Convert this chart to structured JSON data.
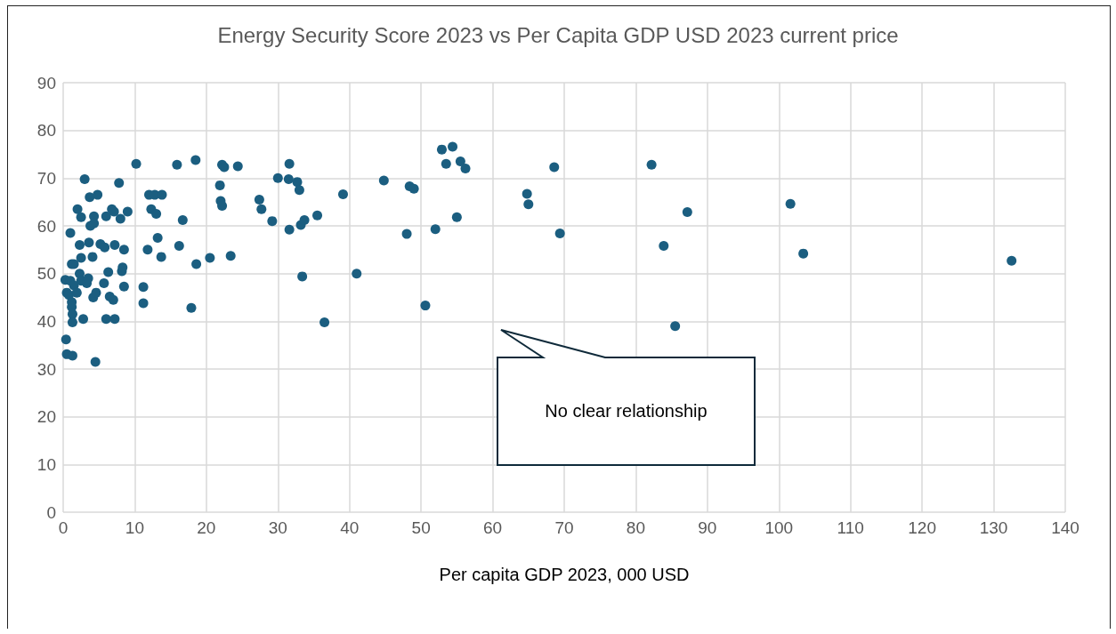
{
  "chart_data": {
    "type": "scatter",
    "title": "Energy Security Score 2023 vs Per Capita GDP USD 2023 current price",
    "xlabel": "Per capita GDP 2023, 000 USD",
    "annotations": [
      "No clear relationship"
    ],
    "x": [
      0.3,
      0.5,
      0.4,
      0.5,
      1.3,
      0.8,
      1,
      1.2,
      1.5,
      1,
      1.5,
      1.2,
      1.2,
      1.3,
      1.3,
      1.9,
      2,
      2.3,
      2.5,
      2.5,
      2.3,
      2.5,
      2.8,
      3,
      3.3,
      3.6,
      3.7,
      3.8,
      3.5,
      4.1,
      4.2,
      4.3,
      4.3,
      4.5,
      4.6,
      4.8,
      5.2,
      5.7,
      5.8,
      6,
      6,
      6.3,
      6.5,
      6.8,
      7,
      7.1,
      7.2,
      7.2,
      7.8,
      8,
      8.2,
      8.3,
      8.5,
      8.5,
      9,
      10.2,
      11.2,
      11.2,
      11.8,
      12,
      12.3,
      12.8,
      13,
      13.2,
      13.8,
      13.7,
      15.9,
      16.2,
      16.7,
      17.9,
      18.5,
      18.6,
      20.5,
      21.9,
      22,
      22.2,
      22.2,
      22.5,
      23.4,
      24.4,
      27.4,
      27.7,
      29.2,
      30,
      31.6,
      31.5,
      31.6,
      32.7,
      33,
      33.2,
      33.4,
      33.7,
      35.5,
      36.5,
      39.1,
      41,
      44.8,
      48,
      48.4,
      49,
      50.6,
      52,
      52.9,
      53.5,
      54.4,
      55,
      55.5,
      56.2,
      64.8,
      65,
      68.6,
      69.4,
      82.2,
      83.9,
      85.5,
      87.2,
      101.6,
      103.4,
      132.5
    ],
    "values": [
      48.7,
      46,
      36.2,
      33.1,
      32.8,
      45.5,
      58.5,
      52,
      52,
      48.5,
      47.5,
      44,
      43,
      41.5,
      39.8,
      46,
      63.5,
      56,
      61.8,
      53.3,
      50,
      48.5,
      40.5,
      69.8,
      48,
      56.5,
      66,
      60,
      49,
      53.5,
      45,
      62,
      60.5,
      31.5,
      46,
      66.5,
      56.2,
      48,
      55.5,
      62,
      40.5,
      50.3,
      45.2,
      63.5,
      44.5,
      63,
      40.5,
      56,
      69,
      61.5,
      50.5,
      51.3,
      47.3,
      55,
      63,
      73,
      47.2,
      43.8,
      55,
      66.5,
      63.5,
      66.5,
      62.5,
      57.5,
      66.5,
      53.5,
      72.8,
      55.8,
      61.2,
      42.8,
      73.8,
      52,
      53.3,
      68.5,
      65.2,
      64.2,
      72.8,
      72.3,
      53.7,
      72.5,
      65.5,
      63.5,
      61,
      70,
      73,
      69.8,
      59.2,
      69.2,
      67.5,
      60.2,
      49.4,
      61.2,
      62.2,
      39.8,
      66.6,
      50,
      69.5,
      58.3,
      68.3,
      67.8,
      43.3,
      59.3,
      76,
      73,
      76.6,
      61.8,
      73.5,
      72,
      66.7,
      64.5,
      72.3,
      58.4,
      72.8,
      55.8,
      39,
      62.9,
      64.6,
      54.2,
      52.7
    ],
    "color": "#1b5e80",
    "marker": "circle",
    "grid": true,
    "xlim": [
      0,
      140
    ],
    "xticks": [
      0,
      10,
      20,
      30,
      40,
      50,
      60,
      70,
      80,
      90,
      100,
      110,
      120,
      130,
      140
    ],
    "ylim": [
      0,
      90
    ],
    "yticks": [
      0,
      10,
      20,
      30,
      40,
      50,
      60,
      70,
      80,
      90
    ]
  }
}
